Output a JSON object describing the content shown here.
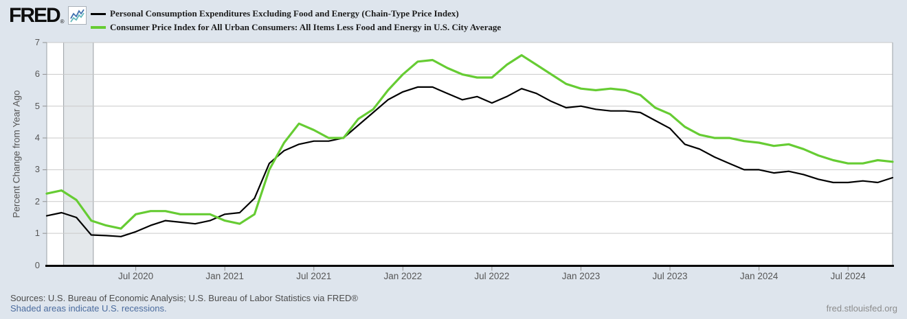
{
  "logo": {
    "text": "FRED",
    "registered": "®"
  },
  "legend": {
    "items": [
      {
        "label": "Personal Consumption Expenditures Excluding Food and Energy (Chain-Type Price Index)",
        "color": "#000000"
      },
      {
        "label": "Consumer Price Index for All Urban Consumers: All Items Less Food and Energy in U.S. City Average",
        "color": "#66cc33"
      }
    ]
  },
  "footer": {
    "sources": "Sources: U.S. Bureau of Economic Analysis; U.S. Bureau of Labor Statistics via FRED®",
    "recession_note": "Shaded areas indicate U.S. recessions.",
    "watermark": "fred.stlouisfed.org"
  },
  "chart_data": {
    "type": "line",
    "title": "",
    "xlabel": "",
    "ylabel": "Percent Change from Year Ago",
    "ylim": [
      0,
      7
    ],
    "grid": true,
    "legend_position": "top-left",
    "y_ticks": [
      0,
      1,
      2,
      3,
      4,
      5,
      6,
      7
    ],
    "x_months": [
      "2020-01",
      "2020-02",
      "2020-03",
      "2020-04",
      "2020-05",
      "2020-06",
      "2020-07",
      "2020-08",
      "2020-09",
      "2020-10",
      "2020-11",
      "2020-12",
      "2021-01",
      "2021-02",
      "2021-03",
      "2021-04",
      "2021-05",
      "2021-06",
      "2021-07",
      "2021-08",
      "2021-09",
      "2021-10",
      "2021-11",
      "2021-12",
      "2022-01",
      "2022-02",
      "2022-03",
      "2022-04",
      "2022-05",
      "2022-06",
      "2022-07",
      "2022-08",
      "2022-09",
      "2022-10",
      "2022-11",
      "2022-12",
      "2023-01",
      "2023-02",
      "2023-03",
      "2023-04",
      "2023-05",
      "2023-06",
      "2023-07",
      "2023-08",
      "2023-09",
      "2023-10",
      "2023-11",
      "2023-12",
      "2024-01",
      "2024-02",
      "2024-03",
      "2024-04",
      "2024-05",
      "2024-06",
      "2024-07",
      "2024-08",
      "2024-09",
      "2024-10"
    ],
    "x_ticks": [
      {
        "month": "2020-07",
        "label": "Jul 2020"
      },
      {
        "month": "2021-01",
        "label": "Jan 2021"
      },
      {
        "month": "2021-07",
        "label": "Jul 2021"
      },
      {
        "month": "2022-01",
        "label": "Jan 2022"
      },
      {
        "month": "2022-07",
        "label": "Jul 2022"
      },
      {
        "month": "2023-01",
        "label": "Jan 2023"
      },
      {
        "month": "2023-07",
        "label": "Jul 2023"
      },
      {
        "month": "2024-01",
        "label": "Jan 2024"
      },
      {
        "month": "2024-07",
        "label": "Jul 2024"
      }
    ],
    "recession_bands": [
      {
        "start": "2020-02",
        "end": "2020-04"
      }
    ],
    "recession_band_color": "#e4e8eb",
    "series": [
      {
        "name": "Personal Consumption Expenditures Excluding Food and Energy (Chain-Type Price Index)",
        "color": "#000000",
        "values": [
          1.55,
          1.65,
          1.5,
          0.95,
          0.93,
          0.9,
          1.05,
          1.25,
          1.4,
          1.35,
          1.3,
          1.4,
          1.6,
          1.65,
          2.1,
          3.2,
          3.6,
          3.8,
          3.9,
          3.9,
          4.0,
          4.4,
          4.8,
          5.2,
          5.45,
          5.6,
          5.6,
          5.4,
          5.2,
          5.3,
          5.1,
          5.3,
          5.55,
          5.4,
          5.15,
          4.95,
          5.0,
          4.9,
          4.85,
          4.85,
          4.8,
          4.55,
          4.3,
          3.8,
          3.65,
          3.4,
          3.2,
          3.0,
          3.0,
          2.9,
          2.95,
          2.85,
          2.7,
          2.6,
          2.6,
          2.65,
          2.6,
          2.75
        ]
      },
      {
        "name": "Consumer Price Index for All Urban Consumers: All Items Less Food and Energy in U.S. City Average",
        "color": "#66cc33",
        "values": [
          2.25,
          2.35,
          2.05,
          1.4,
          1.25,
          1.15,
          1.6,
          1.7,
          1.7,
          1.6,
          1.6,
          1.6,
          1.4,
          1.3,
          1.6,
          3.0,
          3.85,
          4.45,
          4.25,
          4.0,
          4.0,
          4.6,
          4.9,
          5.5,
          6.0,
          6.4,
          6.45,
          6.2,
          6.0,
          5.9,
          5.9,
          6.3,
          6.6,
          6.3,
          6.0,
          5.7,
          5.55,
          5.5,
          5.55,
          5.5,
          5.35,
          4.95,
          4.75,
          4.35,
          4.1,
          4.0,
          4.0,
          3.9,
          3.85,
          3.75,
          3.8,
          3.65,
          3.45,
          3.3,
          3.2,
          3.2,
          3.3,
          3.25
        ]
      }
    ]
  }
}
